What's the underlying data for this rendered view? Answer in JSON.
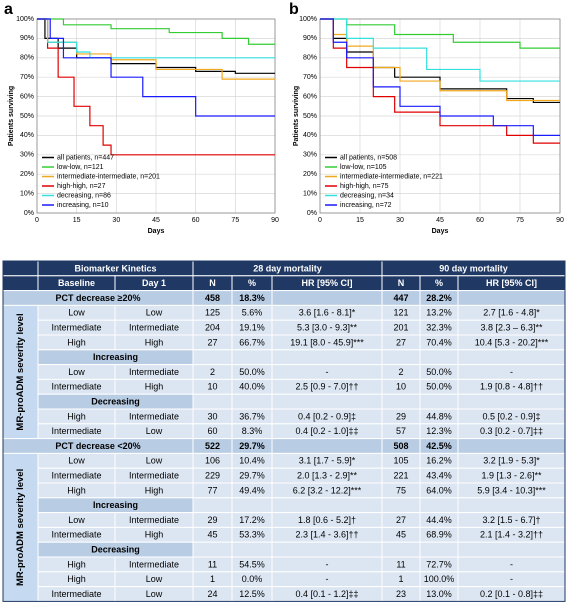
{
  "chart_data": [
    {
      "type": "line",
      "step": true,
      "panel": "a",
      "ylabel": "Patients surviving",
      "xlabel": "Days",
      "xlim": [
        0,
        90
      ],
      "xticks": [
        0,
        15,
        30,
        45,
        60,
        75,
        90
      ],
      "ylim": [
        0,
        100
      ],
      "yticks": [
        {
          "value": 0,
          "label": "0%"
        },
        {
          "value": 10,
          "label": "10%"
        },
        {
          "value": 20,
          "label": "20%"
        },
        {
          "value": 30,
          "label": "30%"
        },
        {
          "value": 40,
          "label": "40%"
        },
        {
          "value": 50,
          "label": "50%"
        },
        {
          "value": 60,
          "label": "60%"
        },
        {
          "value": 70,
          "label": "70%"
        },
        {
          "value": 80,
          "label": "80%"
        },
        {
          "value": 90,
          "label": "90%"
        },
        {
          "value": 100,
          "label": "100%"
        }
      ],
      "grid": true,
      "legend": "lower left",
      "series": [
        {
          "name": "all patients, n=447",
          "color": "#000000",
          "x": [
            0,
            3,
            3,
            8,
            8,
            15,
            15,
            28,
            28,
            45,
            45,
            60,
            60,
            75,
            75,
            90
          ],
          "values": [
            100,
            100,
            90,
            90,
            85,
            85,
            80,
            80,
            77,
            77,
            75,
            75,
            73,
            73,
            72,
            72
          ]
        },
        {
          "name": "low-low, n=121",
          "color": "#33cc33",
          "x": [
            0,
            10,
            10,
            28,
            28,
            50,
            50,
            70,
            70,
            80,
            80,
            90
          ],
          "values": [
            100,
            100,
            97,
            97,
            95,
            95,
            93,
            93,
            90,
            90,
            87,
            87
          ]
        },
        {
          "name": "intermediate-intermediate, n=201",
          "color": "#f0a81c",
          "x": [
            0,
            4,
            4,
            15,
            15,
            28,
            28,
            45,
            45,
            70,
            70,
            90
          ],
          "values": [
            100,
            100,
            88,
            88,
            82,
            82,
            79,
            79,
            74,
            74,
            69,
            69
          ]
        },
        {
          "name": "high-high, n=27",
          "color": "#e00000",
          "x": [
            0,
            4,
            4,
            8,
            8,
            14,
            14,
            20,
            20,
            25,
            25,
            28,
            28,
            90
          ],
          "values": [
            100,
            100,
            85,
            85,
            70,
            70,
            55,
            55,
            45,
            45,
            35,
            35,
            30,
            30
          ]
        },
        {
          "name": "decreasing, n=86",
          "color": "#33e0e0",
          "x": [
            0,
            4,
            4,
            15,
            15,
            20,
            20,
            90
          ],
          "values": [
            100,
            100,
            88,
            88,
            83,
            83,
            80,
            80
          ]
        },
        {
          "name": "increasing, n=10",
          "color": "#1a1aff",
          "x": [
            0,
            5,
            5,
            10,
            10,
            28,
            28,
            40,
            40,
            60,
            60,
            90
          ],
          "values": [
            100,
            100,
            90,
            90,
            80,
            80,
            70,
            70,
            60,
            60,
            50,
            50
          ]
        }
      ]
    },
    {
      "type": "line",
      "step": true,
      "panel": "b",
      "ylabel": "Patients surviving",
      "xlabel": "Days",
      "xlim": [
        0,
        90
      ],
      "xticks": [
        0,
        15,
        30,
        45,
        60,
        75,
        90
      ],
      "ylim": [
        0,
        100
      ],
      "yticks": [
        {
          "value": 0,
          "label": "0%"
        },
        {
          "value": 10,
          "label": "10%"
        },
        {
          "value": 20,
          "label": "20%"
        },
        {
          "value": 30,
          "label": "30%"
        },
        {
          "value": 40,
          "label": "40%"
        },
        {
          "value": 50,
          "label": "50%"
        },
        {
          "value": 60,
          "label": "60%"
        },
        {
          "value": 70,
          "label": "70%"
        },
        {
          "value": 80,
          "label": "80%"
        },
        {
          "value": 90,
          "label": "90%"
        },
        {
          "value": 100,
          "label": "100%"
        }
      ],
      "grid": true,
      "legend": "lower left",
      "series": [
        {
          "name": "all patients, n=508",
          "color": "#000000",
          "x": [
            0,
            5,
            5,
            10,
            10,
            20,
            20,
            28,
            28,
            45,
            45,
            70,
            70,
            80,
            80,
            90
          ],
          "values": [
            100,
            100,
            90,
            90,
            83,
            83,
            75,
            75,
            70,
            70,
            64,
            64,
            59,
            59,
            57,
            57
          ]
        },
        {
          "name": "low-low, n=105",
          "color": "#33cc33",
          "x": [
            0,
            10,
            10,
            28,
            28,
            50,
            50,
            75,
            75,
            90
          ],
          "values": [
            100,
            100,
            97,
            97,
            92,
            92,
            88,
            88,
            85,
            85
          ]
        },
        {
          "name": "intermediate-intermediate, n=221",
          "color": "#f0a81c",
          "x": [
            0,
            5,
            5,
            10,
            10,
            20,
            20,
            30,
            30,
            45,
            45,
            70,
            70,
            90
          ],
          "values": [
            100,
            100,
            92,
            92,
            86,
            86,
            75,
            75,
            68,
            68,
            63,
            63,
            58,
            58
          ]
        },
        {
          "name": "high-high, n=75",
          "color": "#e00000",
          "x": [
            0,
            5,
            5,
            10,
            10,
            20,
            20,
            28,
            28,
            45,
            45,
            70,
            70,
            80,
            80,
            90
          ],
          "values": [
            100,
            100,
            85,
            85,
            75,
            75,
            60,
            60,
            52,
            52,
            45,
            45,
            40,
            40,
            36,
            36
          ]
        },
        {
          "name": "decreasing, n=34",
          "color": "#33e0e0",
          "x": [
            0,
            10,
            10,
            20,
            20,
            40,
            40,
            60,
            60,
            90
          ],
          "values": [
            100,
            100,
            90,
            90,
            85,
            85,
            74,
            74,
            68,
            68
          ]
        },
        {
          "name": "increasing, n=72",
          "color": "#1a1aff",
          "x": [
            0,
            5,
            5,
            10,
            10,
            20,
            20,
            30,
            30,
            45,
            45,
            65,
            65,
            80,
            80,
            90
          ],
          "values": [
            100,
            100,
            88,
            88,
            80,
            80,
            65,
            65,
            55,
            55,
            50,
            50,
            45,
            45,
            40,
            40
          ]
        }
      ]
    }
  ],
  "table": {
    "header": [
      "Biomarker Kinetics",
      "28 day mortality",
      "90 day mortality"
    ],
    "columns": [
      "Baseline",
      "Day 1",
      "N",
      "%",
      "HR [95% CI]",
      "N",
      "%",
      "HR [95% CI]"
    ],
    "groups": [
      {
        "title": "PCT decrease ≥20%",
        "summary": [
          "458",
          "18.3%",
          "447",
          "28.2%"
        ],
        "side_label": "MR-proADM severity level",
        "rows": [
          {
            "cells": [
              "Low",
              "Low",
              "125",
              "5.6%",
              "3.6 [1.6 - 8.1]*",
              "121",
              "13.2%",
              "2.7 [1.6 - 4.8]*"
            ]
          },
          {
            "cells": [
              "Intermediate",
              "Intermediate",
              "204",
              "19.1%",
              "5.3 [3.0 - 9.3]**",
              "201",
              "32.3%",
              "3.8 [2.3 – 6.3]**"
            ]
          },
          {
            "cells": [
              "High",
              "High",
              "27",
              "66.7%",
              "19.1 [8.0 - 45.9]***",
              "27",
              "70.4%",
              "10.4 [5.3 - 20.2]***"
            ]
          },
          {
            "heading": "Increasing"
          },
          {
            "cells": [
              "Low",
              "Intermediate",
              "2",
              "50.0%",
              "-",
              "2",
              "50.0%",
              "-"
            ]
          },
          {
            "cells": [
              "Intermediate",
              "High",
              "10",
              "40.0%",
              "2.5 [0.9 - 7.0]††",
              "10",
              "50.0%",
              "1.9 [0.8 - 4.8]††"
            ]
          },
          {
            "heading": "Decreasing"
          },
          {
            "cells": [
              "High",
              "Intermediate",
              "30",
              "36.7%",
              "0.4 [0.2 - 0.9]‡",
              "29",
              "44.8%",
              "0.5 [0.2 - 0.9]‡"
            ]
          },
          {
            "cells": [
              "Intermediate",
              "Low",
              "60",
              "8.3%",
              "0.4 [0.2 - 1.0]‡‡",
              "57",
              "12.3%",
              "0.3 [0.2 - 0.7]‡‡"
            ]
          }
        ]
      },
      {
        "title": "PCT decrease <20%",
        "summary": [
          "522",
          "29.7%",
          "508",
          "42.5%"
        ],
        "side_label": "MR-proADM severity level",
        "rows": [
          {
            "cells": [
              "Low",
              "Low",
              "106",
              "10.4%",
              "3.1 [1.7 - 5.9]*",
              "105",
              "16.2%",
              "3.2 [1.9 - 5.3]*"
            ]
          },
          {
            "cells": [
              "Intermediate",
              "Intermediate",
              "229",
              "29.7%",
              "2.0 [1.3 - 2.9]**",
              "221",
              "43.4%",
              "1.9 [1.3 - 2.6]**"
            ]
          },
          {
            "cells": [
              "High",
              "High",
              "77",
              "49.4%",
              "6.2 [3.2 - 12.2]***",
              "75",
              "64.0%",
              "5.9 [3.4 - 10.3]***"
            ]
          },
          {
            "heading": "Increasing"
          },
          {
            "cells": [
              "Low",
              "Intermediate",
              "29",
              "17.2%",
              "1.8 [0.6 - 5.2]†",
              "27",
              "44.4%",
              "3.2 [1.5 - 6.7]†"
            ]
          },
          {
            "cells": [
              "Intermediate",
              "High",
              "45",
              "53.3%",
              "2.3 [1.4 - 3.6]††",
              "45",
              "68.9%",
              "2.1 [1.4 - 3.2]††"
            ]
          },
          {
            "heading": "Decreasing"
          },
          {
            "cells": [
              "High",
              "Intermediate",
              "11",
              "54.5%",
              "-",
              "11",
              "72.7%",
              "-"
            ]
          },
          {
            "cells": [
              "High",
              "Low",
              "1",
              "0.0%",
              "-",
              "1",
              "100.0%",
              "-"
            ]
          },
          {
            "cells": [
              "Intermediate",
              "Low",
              "24",
              "12.5%",
              "0.4 [0.1 - 1.2]‡‡",
              "23",
              "13.0%",
              "0.2 [0.1 - 0.8]‡‡"
            ]
          }
        ]
      }
    ]
  }
}
